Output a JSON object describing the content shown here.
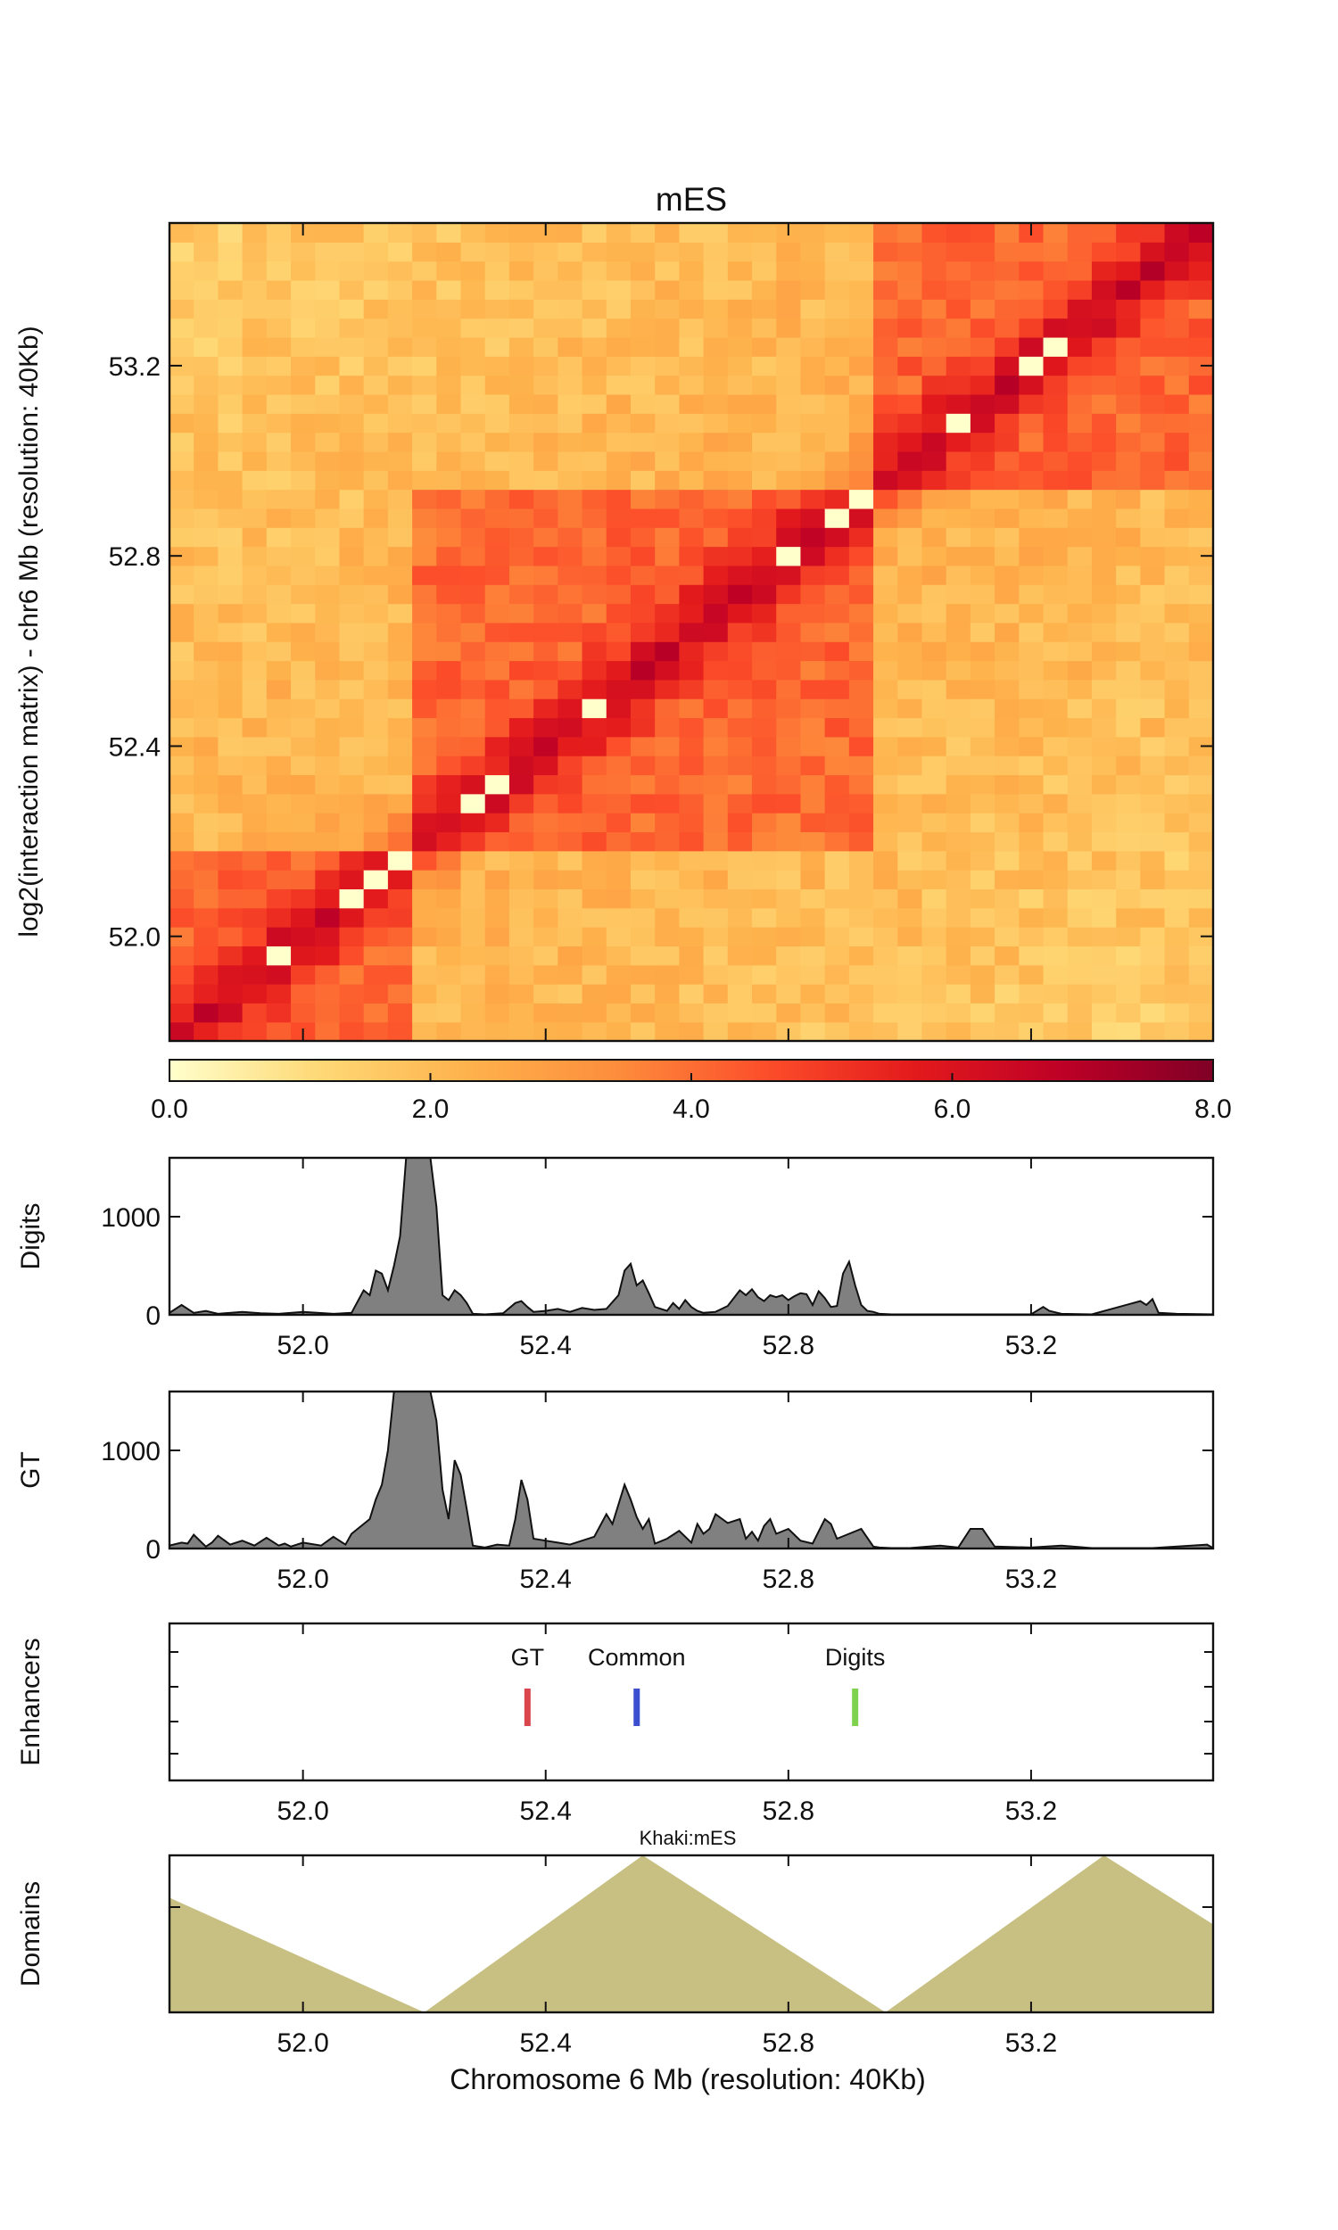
{
  "chart_data": {
    "type": "composite",
    "heatmap": {
      "type": "heatmap",
      "title": "mES",
      "ylabel": "log2(interaction matrix) - chr6 Mb (resolution: 40Kb)",
      "x_range": [
        51.78,
        53.5
      ],
      "y_range": [
        51.78,
        53.5
      ],
      "y_ticks": [
        52.0,
        52.4,
        52.8,
        53.2
      ],
      "y_tick_labels": [
        "52.0",
        "52.4",
        "52.8",
        "53.2"
      ],
      "bin_size_mb": 0.04,
      "domains_mb": [
        [
          51.78,
          52.2
        ],
        [
          52.2,
          52.95
        ],
        [
          52.95,
          53.5
        ]
      ],
      "within_domain_level": 4.3,
      "between_domain_level": 2.4,
      "diagonal_level": 5.6,
      "colorbar": {
        "vmin": 0.0,
        "vmax": 8.0,
        "ticks": [
          0.0,
          2.0,
          4.0,
          6.0,
          8.0
        ],
        "tick_labels": [
          "0.0",
          "2.0",
          "4.0",
          "6.0",
          "8.0"
        ],
        "colors": [
          "#ffffcc",
          "#fed976",
          "#feb24c",
          "#fd8d3c",
          "#fc4e2a",
          "#e31a1c",
          "#bd0026",
          "#800026"
        ]
      }
    },
    "signal_tracks": [
      {
        "type": "area",
        "name": "Digits",
        "ylabel": "Digits",
        "y_ticks": [
          0,
          1000
        ],
        "y_tick_labels": [
          "0",
          "1000"
        ],
        "ylim": [
          0,
          1600
        ],
        "x": [
          51.78,
          51.8,
          51.82,
          51.84,
          51.86,
          51.9,
          51.93,
          51.96,
          52.0,
          52.05,
          52.08,
          52.1,
          52.11,
          52.12,
          52.13,
          52.14,
          52.15,
          52.16,
          52.17,
          52.18,
          52.19,
          52.2,
          52.21,
          52.22,
          52.23,
          52.24,
          52.25,
          52.26,
          52.27,
          52.28,
          52.3,
          52.33,
          52.35,
          52.36,
          52.37,
          52.38,
          52.4,
          52.42,
          52.44,
          52.46,
          52.48,
          52.5,
          52.52,
          52.53,
          52.54,
          52.55,
          52.56,
          52.57,
          52.58,
          52.6,
          52.61,
          52.62,
          52.63,
          52.64,
          52.65,
          52.66,
          52.68,
          52.7,
          52.72,
          52.73,
          52.74,
          52.75,
          52.76,
          52.77,
          52.78,
          52.79,
          52.8,
          52.81,
          52.82,
          52.83,
          52.84,
          52.85,
          52.86,
          52.87,
          52.88,
          52.89,
          52.9,
          52.91,
          52.92,
          52.93,
          52.94,
          52.95,
          52.97,
          53.0,
          53.1,
          53.2,
          53.22,
          53.23,
          53.25,
          53.3,
          53.38,
          53.39,
          53.4,
          53.41,
          53.44,
          53.5
        ],
        "values": [
          20,
          100,
          20,
          40,
          10,
          30,
          15,
          10,
          30,
          10,
          20,
          250,
          200,
          450,
          420,
          250,
          500,
          800,
          1600,
          1600,
          1600,
          1600,
          1600,
          1100,
          200,
          150,
          250,
          200,
          120,
          10,
          5,
          15,
          120,
          140,
          80,
          30,
          40,
          60,
          30,
          70,
          50,
          60,
          200,
          450,
          520,
          300,
          350,
          220,
          80,
          40,
          120,
          60,
          150,
          80,
          40,
          20,
          30,
          90,
          250,
          200,
          260,
          180,
          140,
          200,
          180,
          200,
          150,
          190,
          220,
          210,
          100,
          240,
          170,
          80,
          90,
          420,
          540,
          300,
          100,
          40,
          30,
          10,
          5,
          5,
          5,
          5,
          80,
          40,
          10,
          5,
          140,
          100,
          160,
          20,
          10,
          5
        ]
      },
      {
        "type": "area",
        "name": "GT",
        "ylabel": "GT",
        "y_ticks": [
          0,
          1000
        ],
        "y_tick_labels": [
          "0",
          "1000"
        ],
        "ylim": [
          0,
          1600
        ],
        "x": [
          51.78,
          51.8,
          51.81,
          51.82,
          51.84,
          51.85,
          51.86,
          51.88,
          51.9,
          51.92,
          51.94,
          51.96,
          51.97,
          51.98,
          52.0,
          52.03,
          52.05,
          52.07,
          52.08,
          52.1,
          52.11,
          52.12,
          52.13,
          52.14,
          52.15,
          52.16,
          52.17,
          52.18,
          52.19,
          52.2,
          52.21,
          52.22,
          52.23,
          52.24,
          52.25,
          52.26,
          52.27,
          52.28,
          52.29,
          52.3,
          52.32,
          52.34,
          52.35,
          52.36,
          52.37,
          52.38,
          52.4,
          52.42,
          52.44,
          52.46,
          52.48,
          52.5,
          52.51,
          52.52,
          52.53,
          52.54,
          52.55,
          52.56,
          52.57,
          52.58,
          52.6,
          52.62,
          52.64,
          52.65,
          52.66,
          52.67,
          52.68,
          52.7,
          52.72,
          52.73,
          52.74,
          52.75,
          52.76,
          52.77,
          52.78,
          52.8,
          52.82,
          52.84,
          52.86,
          52.87,
          52.88,
          52.9,
          52.92,
          52.94,
          52.95,
          52.97,
          53.0,
          53.05,
          53.08,
          53.1,
          53.12,
          53.14,
          53.2,
          53.25,
          53.3,
          53.4,
          53.49,
          53.5
        ],
        "values": [
          30,
          60,
          50,
          140,
          20,
          60,
          130,
          40,
          80,
          30,
          110,
          30,
          50,
          20,
          60,
          30,
          120,
          40,
          150,
          250,
          300,
          500,
          650,
          1000,
          1600,
          1600,
          1600,
          1600,
          1600,
          1600,
          1600,
          1300,
          600,
          300,
          900,
          750,
          400,
          30,
          20,
          10,
          40,
          30,
          300,
          700,
          500,
          100,
          80,
          60,
          40,
          80,
          120,
          350,
          250,
          450,
          650,
          500,
          320,
          200,
          300,
          50,
          100,
          180,
          60,
          250,
          150,
          200,
          350,
          260,
          300,
          100,
          170,
          80,
          230,
          300,
          150,
          200,
          80,
          50,
          300,
          250,
          100,
          150,
          200,
          20,
          10,
          5,
          5,
          30,
          10,
          200,
          200,
          20,
          10,
          30,
          5,
          5,
          40,
          5
        ]
      }
    ],
    "enhancers": {
      "ylabel": "Enhancers",
      "markers": [
        {
          "label": "GT",
          "position_mb": 52.37,
          "color": "#d9464b"
        },
        {
          "label": "Common",
          "position_mb": 52.55,
          "color": "#3c4ed0"
        },
        {
          "label": "Digits",
          "position_mb": 52.91,
          "color": "#7ed24e"
        }
      ]
    },
    "domains": {
      "ylabel": "Domains",
      "legend": "Khaki:mES",
      "color": "#c8c082",
      "x": [
        51.78,
        52.2,
        52.56,
        52.96,
        53.32,
        53.5
      ],
      "values": [
        0.73,
        0.0,
        1.0,
        0.0,
        1.0,
        0.56
      ]
    },
    "x_ticks": [
      52.0,
      52.4,
      52.8,
      53.2
    ],
    "x_tick_labels": [
      "52.0",
      "52.4",
      "52.8",
      "53.2"
    ],
    "xlabel": "Chromosome 6 Mb (resolution: 40Kb)"
  }
}
